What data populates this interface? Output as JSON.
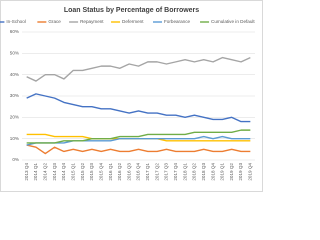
{
  "chart_data": {
    "type": "line",
    "title": "Loan Status by Percentage of Borrowers",
    "categories": [
      "2013 Q4",
      "2014 Q1",
      "2014 Q2",
      "2014 Q3",
      "2014 Q4",
      "2015 Q1",
      "2015 Q2",
      "2015 Q3",
      "2015 Q4",
      "2016 Q1",
      "2016 Q2",
      "2016 Q3",
      "2016 Q4",
      "2017 Q1",
      "2017 Q2",
      "2017 Q3",
      "2017 Q4",
      "2018 Q1",
      "2018 Q2",
      "2018 Q3",
      "2018 Q4",
      "2019 Q1",
      "2019 Q2",
      "2019 Q3",
      "2019 Q4"
    ],
    "series": [
      {
        "name": "In-School",
        "color": "#4472c4",
        "values": [
          29,
          31,
          30,
          29,
          27,
          26,
          25,
          25,
          24,
          24,
          23,
          22,
          23,
          22,
          22,
          21,
          21,
          20,
          21,
          20,
          19,
          19,
          20,
          18,
          18
        ]
      },
      {
        "name": "Grace",
        "color": "#ed7d31",
        "values": [
          7,
          6,
          3,
          6,
          4,
          5,
          4,
          5,
          4,
          5,
          4,
          4,
          5,
          4,
          4,
          5,
          4,
          4,
          4,
          5,
          4,
          4,
          5,
          4,
          4
        ]
      },
      {
        "name": "Repayment",
        "color": "#a5a5a5",
        "values": [
          39,
          37,
          40,
          40,
          38,
          42,
          42,
          43,
          44,
          44,
          43,
          45,
          44,
          46,
          46,
          45,
          46,
          47,
          46,
          47,
          46,
          48,
          47,
          46,
          48
        ]
      },
      {
        "name": "Deferment",
        "color": "#ffc000",
        "values": [
          12,
          12,
          12,
          11,
          11,
          11,
          11,
          10,
          10,
          10,
          10,
          10,
          10,
          10,
          10,
          9,
          9,
          9,
          9,
          9,
          9,
          9,
          9,
          9,
          9
        ]
      },
      {
        "name": "Forbearance",
        "color": "#5b9bd5",
        "values": [
          7,
          8,
          8,
          8,
          8,
          9,
          9,
          9,
          9,
          9,
          10,
          10,
          10,
          10,
          10,
          10,
          10,
          10,
          10,
          11,
          10,
          11,
          10,
          10,
          10
        ]
      },
      {
        "name": "Cumulative in Default",
        "color": "#70ad47",
        "values": [
          8,
          8,
          8,
          8,
          9,
          9,
          9,
          10,
          10,
          10,
          11,
          11,
          11,
          12,
          12,
          12,
          12,
          12,
          13,
          13,
          13,
          13,
          13,
          14,
          14
        ]
      }
    ],
    "ylim": [
      0,
      60
    ],
    "yticks": [
      {
        "value": 0,
        "label": "0%"
      },
      {
        "value": 10,
        "label": "10%"
      },
      {
        "value": 20,
        "label": "20%"
      },
      {
        "value": 30,
        "label": "30%"
      },
      {
        "value": 40,
        "label": "40%"
      },
      {
        "value": 50,
        "label": "50%"
      },
      {
        "value": 60,
        "label": "60%"
      }
    ],
    "grid": true,
    "legend": "top"
  }
}
